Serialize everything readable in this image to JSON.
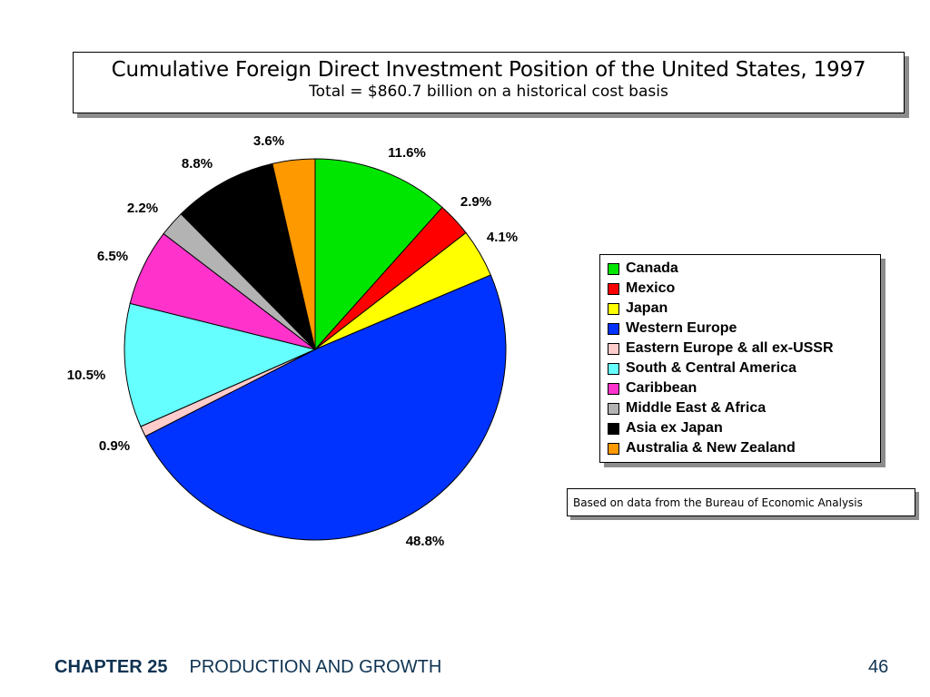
{
  "chart_data": {
    "type": "pie",
    "title": "Cumulative Foreign Direct Investment Position of the United States, 1997",
    "subtitle": "Total = $860.7 billion on a historical cost basis",
    "series": [
      {
        "name": "Canada",
        "value": 11.6,
        "label": "11.6%",
        "color": "#00e600"
      },
      {
        "name": "Mexico",
        "value": 2.9,
        "label": "2.9%",
        "color": "#ff0000"
      },
      {
        "name": "Japan",
        "value": 4.1,
        "label": "4.1%",
        "color": "#ffff00"
      },
      {
        "name": "Western Europe",
        "value": 48.8,
        "label": "48.8%",
        "color": "#0033ff"
      },
      {
        "name": "Eastern Europe & all ex-USSR",
        "value": 0.9,
        "label": "0.9%",
        "color": "#ffcccc"
      },
      {
        "name": "South & Central America",
        "value": 10.5,
        "label": "10.5%",
        "color": "#66ffff"
      },
      {
        "name": "Caribbean",
        "value": 6.5,
        "label": "6.5%",
        "color": "#ff33cc"
      },
      {
        "name": "Middle East & Africa",
        "value": 2.2,
        "label": "2.2%",
        "color": "#b3b3b3"
      },
      {
        "name": "Asia ex Japan",
        "value": 8.8,
        "label": "8.8%",
        "color": "#000000"
      },
      {
        "name": "Australia & New Zealand",
        "value": 3.6,
        "label": "3.6%",
        "color": "#ff9900"
      }
    ],
    "legend_position": "right"
  },
  "source_note": "Based on data from the Bureau of Economic Analysis",
  "footer": {
    "chapter": "CHAPTER 25",
    "section": "PRODUCTION AND GROWTH",
    "page": "46"
  }
}
